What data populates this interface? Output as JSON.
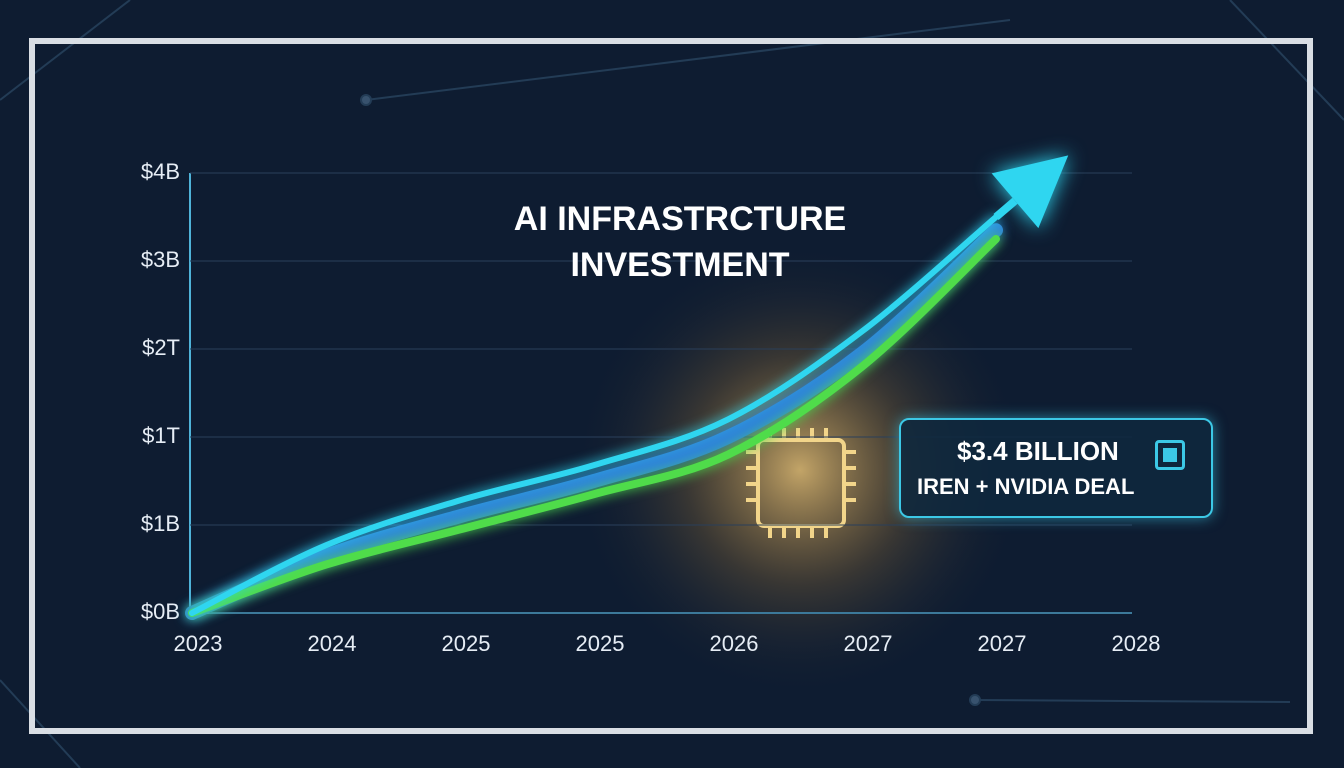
{
  "chart_data": {
    "type": "line",
    "title": "AI INFRASTRCTURE INVESTMENT",
    "categories": [
      "2023",
      "2024",
      "2025",
      "2025",
      "2026",
      "2027",
      "2027",
      "2028"
    ],
    "series": [
      {
        "color": "#2fd6f0",
        "values": [
          0,
          0.77,
          1.28,
          1.68,
          2.2,
          3.2,
          4.5,
          null
        ]
      },
      {
        "color": "#2f86d8",
        "values": [
          0,
          0.65,
          1.1,
          1.5,
          2.0,
          2.95,
          4.35,
          null
        ]
      },
      {
        "color": "#4fdc4a",
        "values": [
          0,
          0.55,
          0.95,
          1.35,
          1.8,
          2.8,
          4.25,
          null
        ]
      }
    ],
    "ylim": [
      0,
      5
    ],
    "yticks": [
      {
        "value": 0,
        "label": "$0B"
      },
      {
        "value": 1,
        "label": "$1B"
      },
      {
        "value": 2,
        "label": "$1T"
      },
      {
        "value": 3,
        "label": "$2T"
      },
      {
        "value": 4,
        "label": "$3B"
      },
      {
        "value": 5,
        "label": "$4B"
      }
    ],
    "grid": true,
    "annotation": [
      "$3.4 BILLION",
      "IREN + NVIDIA DEAL"
    ]
  }
}
